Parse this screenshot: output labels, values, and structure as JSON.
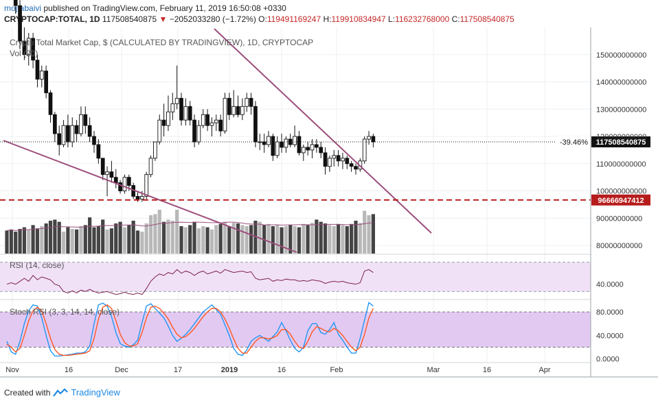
{
  "header": {
    "user": "mojtabaivi",
    "published": "published on TradingView.com, February 11, 2019 16:50:08 +0330",
    "symbol": "CRYPTOCAP:TOTAL, 1D",
    "last": "117508540875",
    "change": "−2052033280 (−1.72%)",
    "o_label": "O:",
    "o": "119491169247",
    "h_label": "H:",
    "h": "119910834947",
    "l_label": "L:",
    "l": "116232768000",
    "c_label": "C:",
    "c": "117508540875"
  },
  "footer": {
    "created_with": "Created with",
    "brand": "TradingView"
  },
  "colors": {
    "up": "#ffffff",
    "down": "#111111",
    "candle_outline": "#111111",
    "trendline": "#9c4d7a",
    "support": "#b71c1c",
    "rsi_fill": "#f1e1f7",
    "stoch_fill": "#e2c9f2",
    "stoch_k": "#2196f3",
    "stoch_d": "#ff5722",
    "rsi_line": "#7b1f4f"
  },
  "chart_data": [
    {
      "type": "candlestick",
      "title": "Crypto Total Market Cap, $ (CALCULATED BY TRADINGVIEW), 1D, CRYPTOCAP",
      "subtitle": "Vol (20)",
      "x_ticks": [
        "Nov",
        "16",
        "Dec",
        "17",
        "2019",
        "16",
        "Feb",
        "Mar",
        "16",
        "Apr"
      ],
      "y_ticks": [
        80000000000,
        90000000000,
        100000000000,
        110000000000,
        120000000000,
        130000000000,
        140000000000,
        150000000000
      ],
      "y_tick_labels": [
        "80000000000",
        "90000000000",
        "100000000000",
        "110000000000",
        "120000000000",
        "130000000000",
        "140000000000",
        "150000000000"
      ],
      "ylim": [
        77000000000,
        160000000000
      ],
      "last_price_label": "117508540875",
      "last_change_label": "-39.46%",
      "support_level_label": "96666947412",
      "support_level": 96666947412,
      "ohlc": [
        [
          186,
          190,
          178,
          180
        ],
        [
          180,
          184,
          172,
          174
        ],
        [
          174,
          178,
          165,
          168
        ],
        [
          168,
          170,
          152,
          155
        ],
        [
          155,
          160,
          148,
          150
        ],
        [
          150,
          158,
          146,
          156
        ],
        [
          156,
          158,
          145,
          148
        ],
        [
          148,
          150,
          138,
          141
        ],
        [
          141,
          146,
          138,
          144
        ],
        [
          144,
          146,
          134,
          136
        ],
        [
          136,
          137,
          125,
          128
        ],
        [
          128,
          129,
          118,
          121
        ],
        [
          121,
          124,
          113,
          117
        ],
        [
          117,
          126,
          116,
          124
        ],
        [
          124,
          128,
          116,
          118
        ],
        [
          118,
          127,
          116,
          124
        ],
        [
          124,
          126,
          118,
          121
        ],
        [
          121,
          131,
          120,
          128
        ],
        [
          128,
          131,
          121,
          124
        ],
        [
          124,
          127,
          118,
          120
        ],
        [
          120,
          122,
          114,
          117
        ],
        [
          117,
          119,
          110,
          112
        ],
        [
          112,
          112,
          104,
          106
        ],
        [
          106,
          109,
          98,
          107
        ],
        [
          107,
          111,
          103,
          105
        ],
        [
          105,
          108,
          101,
          103
        ],
        [
          103,
          104,
          99,
          100
        ],
        [
          100,
          106,
          99,
          105
        ],
        [
          105,
          106,
          100,
          102
        ],
        [
          102,
          103,
          97,
          98
        ],
        [
          98,
          100,
          96,
          97
        ],
        [
          97,
          100,
          96,
          98
        ],
        [
          98,
          107,
          97,
          106
        ],
        [
          106,
          113,
          105,
          112
        ],
        [
          112,
          118,
          111,
          118
        ],
        [
          118,
          128,
          117,
          126
        ],
        [
          126,
          132,
          120,
          124
        ],
        [
          124,
          135,
          122,
          129
        ],
        [
          129,
          136,
          126,
          132
        ],
        [
          132,
          146,
          130,
          134
        ],
        [
          134,
          136,
          124,
          126
        ],
        [
          126,
          134,
          124,
          131
        ],
        [
          131,
          133,
          124,
          126
        ],
        [
          126,
          128,
          116,
          118
        ],
        [
          118,
          126,
          117,
          124
        ],
        [
          124,
          130,
          123,
          128
        ],
        [
          128,
          130,
          122,
          124
        ],
        [
          124,
          127,
          120,
          125
        ],
        [
          125,
          128,
          122,
          126
        ],
        [
          126,
          128,
          120,
          122
        ],
        [
          122,
          136,
          121,
          134
        ],
        [
          134,
          136,
          126,
          128
        ],
        [
          128,
          137,
          127,
          131
        ],
        [
          131,
          135,
          127,
          128
        ],
        [
          128,
          134,
          126,
          131
        ],
        [
          131,
          136,
          129,
          134
        ],
        [
          134,
          136,
          128,
          131
        ],
        [
          131,
          133,
          116,
          118
        ],
        [
          118,
          121,
          115,
          118
        ],
        [
          118,
          121,
          114,
          117
        ],
        [
          117,
          122,
          116,
          120
        ],
        [
          120,
          121,
          111,
          113
        ],
        [
          113,
          120,
          112,
          118
        ],
        [
          118,
          121,
          114,
          116
        ],
        [
          116,
          120,
          114,
          119
        ],
        [
          119,
          121,
          116,
          117
        ],
        [
          117,
          124,
          116,
          120
        ],
        [
          120,
          122,
          113,
          114
        ],
        [
          114,
          117,
          111,
          116
        ],
        [
          116,
          118,
          113,
          115
        ],
        [
          115,
          119,
          112,
          117
        ],
        [
          117,
          119,
          114,
          116
        ],
        [
          116,
          118,
          112,
          114
        ],
        [
          114,
          116,
          106,
          109
        ],
        [
          109,
          113,
          107,
          112
        ],
        [
          112,
          115,
          109,
          113
        ],
        [
          113,
          115,
          109,
          111
        ],
        [
          111,
          114,
          108,
          112
        ],
        [
          112,
          113,
          108,
          110
        ],
        [
          110,
          111,
          107,
          109
        ],
        [
          109,
          110,
          106,
          108
        ],
        [
          108,
          112,
          107,
          111
        ],
        [
          111,
          120,
          110,
          119
        ],
        [
          119,
          122,
          117,
          120
        ],
        [
          120,
          121,
          116,
          118
        ]
      ],
      "ohlc_unit": "billion USD",
      "volume_relative": [
        0.42,
        0.44,
        0.4,
        0.45,
        0.48,
        0.43,
        0.52,
        0.46,
        0.5,
        0.55,
        0.6,
        0.62,
        0.58,
        0.4,
        0.48,
        0.45,
        0.44,
        0.5,
        0.52,
        0.66,
        0.48,
        0.5,
        0.62,
        0.44,
        0.46,
        0.55,
        0.58,
        0.48,
        0.52,
        0.6,
        0.42,
        0.4,
        0.55,
        0.7,
        0.72,
        0.8,
        0.58,
        0.62,
        0.6,
        0.8,
        0.5,
        0.48,
        0.52,
        0.58,
        0.46,
        0.5,
        0.48,
        0.44,
        0.52,
        0.54,
        0.58,
        0.5,
        0.56,
        0.55,
        0.52,
        0.5,
        0.52,
        0.6,
        0.58,
        0.52,
        0.54,
        0.5,
        0.52,
        0.48,
        0.5,
        0.52,
        0.5,
        0.48,
        0.54,
        0.52,
        0.56,
        0.62,
        0.58,
        0.55,
        0.52,
        0.5,
        0.54,
        0.52,
        0.5,
        0.54,
        0.6,
        0.56,
        0.78,
        0.7,
        0.72
      ]
    },
    {
      "type": "line",
      "title": "RSI (14, close)",
      "y_tick_labels": [
        "40.0000"
      ],
      "y_ticks": [
        40
      ],
      "ylim": [
        20,
        80
      ],
      "band": [
        30,
        70
      ],
      "values": [
        40,
        42,
        40,
        44,
        48,
        44,
        52,
        46,
        50,
        48,
        46,
        40,
        38,
        30,
        28,
        31,
        28,
        32,
        30,
        33,
        30,
        28,
        29,
        30,
        28,
        26,
        27,
        29,
        27,
        26,
        28,
        26,
        34,
        44,
        50,
        54,
        52,
        56,
        54,
        60,
        55,
        58,
        56,
        52,
        56,
        58,
        54,
        56,
        58,
        55,
        60,
        58,
        56,
        57,
        58,
        56,
        57,
        48,
        46,
        47,
        48,
        44,
        46,
        45,
        47,
        46,
        46,
        44,
        45,
        44,
        46,
        45,
        44,
        41,
        43,
        44,
        43,
        44,
        42,
        41,
        40,
        42,
        58,
        60,
        56
      ]
    },
    {
      "type": "line",
      "title": "Stoch RSI (3, 3, 14, 14, close)",
      "y_ticks": [
        0,
        40,
        80
      ],
      "y_tick_labels": [
        "0.0000",
        "40.0000",
        "80.0000"
      ],
      "ylim": [
        -5,
        100
      ],
      "band": [
        20,
        80
      ],
      "series": [
        {
          "values": [
            30,
            12,
            8,
            30,
            60,
            82,
            92,
            90,
            70,
            40,
            14,
            5,
            5,
            6,
            7,
            8,
            10,
            10,
            12,
            22,
            60,
            92,
            95,
            90,
            72,
            45,
            26,
            22,
            20,
            24,
            32,
            62,
            90,
            94,
            86,
            78,
            70,
            56,
            40,
            30,
            35,
            42,
            50,
            60,
            70,
            80,
            86,
            92,
            84,
            76,
            58,
            40,
            18,
            8,
            6,
            15,
            30,
            36,
            40,
            35,
            30,
            38,
            46,
            62,
            48,
            32,
            18,
            12,
            20,
            48,
            60,
            60,
            45,
            42,
            50,
            62,
            42,
            32,
            20,
            10,
            10,
            35,
            66,
            96,
            90
          ]
        },
        {
          "values": [
            25,
            20,
            12,
            18,
            40,
            65,
            82,
            88,
            82,
            60,
            35,
            16,
            8,
            6,
            6,
            7,
            8,
            9,
            10,
            14,
            35,
            68,
            88,
            92,
            86,
            65,
            42,
            28,
            22,
            22,
            26,
            45,
            70,
            88,
            90,
            86,
            78,
            68,
            54,
            42,
            36,
            38,
            44,
            52,
            62,
            72,
            80,
            86,
            86,
            80,
            68,
            52,
            34,
            18,
            10,
            10,
            20,
            30,
            36,
            36,
            34,
            36,
            40,
            50,
            50,
            42,
            30,
            20,
            18,
            30,
            46,
            55,
            52,
            48,
            46,
            52,
            48,
            40,
            30,
            20,
            14,
            20,
            42,
            70,
            86
          ]
        }
      ]
    }
  ]
}
